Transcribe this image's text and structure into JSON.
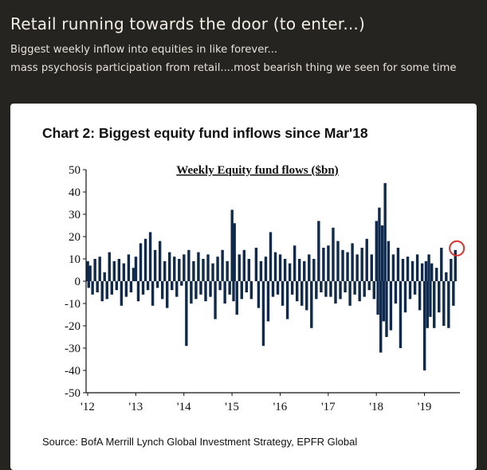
{
  "post": {
    "title": "Retail running towards the door (to enter...)",
    "line1": "Biggest weekly inflow into equities in like forever...",
    "line2": "mass psychosis participation from retail....most bearish thing we seen for some time"
  },
  "colors": {
    "page_background": "#262421",
    "card_background": "#ffffff",
    "bar_color": "#0f2a4f",
    "highlight_circle": "#e0302a"
  },
  "chart_data": {
    "type": "bar",
    "title": "Chart 2: Biggest equity fund inflows since Mar'18",
    "subtitle": "Weekly Equity fund flows ($bn)",
    "source": "Source: BofA Merrill Lynch Global Investment Strategy, EPFR Global",
    "ylim": [
      -50,
      50
    ],
    "y_ticks": [
      50,
      40,
      30,
      20,
      10,
      0,
      -10,
      -20,
      -30,
      -40,
      -50
    ],
    "x_ticks": [
      "'12",
      "'13",
      "'14",
      "'15",
      "'16",
      "'17",
      "'18",
      "'19"
    ],
    "xlim": [
      2012.0,
      2019.67
    ],
    "grid": false,
    "legend": "none",
    "annotation": "red circle around the latest weekly inflow",
    "series": [
      {
        "points": [
          [
            2012.0,
            9
          ],
          [
            2012.02,
            -3
          ],
          [
            2012.05,
            7
          ],
          [
            2012.1,
            -6
          ],
          [
            2012.15,
            10
          ],
          [
            2012.2,
            -5
          ],
          [
            2012.25,
            11
          ],
          [
            2012.3,
            -9
          ],
          [
            2012.35,
            4
          ],
          [
            2012.4,
            -8
          ],
          [
            2012.45,
            13
          ],
          [
            2012.5,
            -6
          ],
          [
            2012.55,
            9
          ],
          [
            2012.6,
            -4
          ],
          [
            2012.65,
            10
          ],
          [
            2012.7,
            -11
          ],
          [
            2012.75,
            8
          ],
          [
            2012.8,
            -7
          ],
          [
            2012.85,
            12
          ],
          [
            2012.9,
            -5
          ],
          [
            2012.95,
            6
          ],
          [
            2013.0,
            11
          ],
          [
            2013.05,
            -9
          ],
          [
            2013.1,
            17
          ],
          [
            2013.15,
            -6
          ],
          [
            2013.2,
            19
          ],
          [
            2013.25,
            -4
          ],
          [
            2013.3,
            22
          ],
          [
            2013.35,
            -11
          ],
          [
            2013.4,
            14
          ],
          [
            2013.45,
            -3
          ],
          [
            2013.5,
            18
          ],
          [
            2013.55,
            -8
          ],
          [
            2013.6,
            9
          ],
          [
            2013.65,
            -12
          ],
          [
            2013.7,
            13
          ],
          [
            2013.75,
            -4
          ],
          [
            2013.8,
            11
          ],
          [
            2013.85,
            -7
          ],
          [
            2013.9,
            10
          ],
          [
            2013.95,
            -2
          ],
          [
            2014.0,
            12
          ],
          [
            2014.05,
            -29
          ],
          [
            2014.1,
            14
          ],
          [
            2014.15,
            -10
          ],
          [
            2014.2,
            9
          ],
          [
            2014.25,
            -8
          ],
          [
            2014.3,
            13
          ],
          [
            2014.35,
            -6
          ],
          [
            2014.4,
            10
          ],
          [
            2014.45,
            -9
          ],
          [
            2014.5,
            12
          ],
          [
            2014.55,
            -7
          ],
          [
            2014.6,
            8
          ],
          [
            2014.65,
            -17
          ],
          [
            2014.7,
            11
          ],
          [
            2014.75,
            -4
          ],
          [
            2014.8,
            14
          ],
          [
            2014.85,
            -10
          ],
          [
            2014.9,
            9
          ],
          [
            2014.95,
            -6
          ],
          [
            2015.0,
            32
          ],
          [
            2015.03,
            -9
          ],
          [
            2015.05,
            26
          ],
          [
            2015.1,
            -15
          ],
          [
            2015.15,
            12
          ],
          [
            2015.2,
            -8
          ],
          [
            2015.25,
            14
          ],
          [
            2015.3,
            -5
          ],
          [
            2015.35,
            10
          ],
          [
            2015.4,
            -8
          ],
          [
            2015.5,
            15
          ],
          [
            2015.55,
            -12
          ],
          [
            2015.6,
            9
          ],
          [
            2015.65,
            -29
          ],
          [
            2015.7,
            11
          ],
          [
            2015.75,
            -18
          ],
          [
            2015.8,
            22
          ],
          [
            2015.85,
            -7
          ],
          [
            2015.9,
            13
          ],
          [
            2015.95,
            -6
          ],
          [
            2016.0,
            12
          ],
          [
            2016.05,
            -11
          ],
          [
            2016.1,
            10
          ],
          [
            2016.15,
            -17
          ],
          [
            2016.2,
            8
          ],
          [
            2016.25,
            -6
          ],
          [
            2016.3,
            16
          ],
          [
            2016.35,
            -9
          ],
          [
            2016.4,
            10
          ],
          [
            2016.45,
            -11
          ],
          [
            2016.5,
            9
          ],
          [
            2016.55,
            -13
          ],
          [
            2016.6,
            12
          ],
          [
            2016.65,
            -21
          ],
          [
            2016.7,
            10
          ],
          [
            2016.75,
            -8
          ],
          [
            2016.8,
            27
          ],
          [
            2016.85,
            -5
          ],
          [
            2016.9,
            15
          ],
          [
            2016.95,
            -7
          ],
          [
            2017.0,
            16
          ],
          [
            2017.05,
            -7
          ],
          [
            2017.1,
            24
          ],
          [
            2017.15,
            -10
          ],
          [
            2017.2,
            18
          ],
          [
            2017.25,
            -8
          ],
          [
            2017.3,
            14
          ],
          [
            2017.35,
            -5
          ],
          [
            2017.4,
            13
          ],
          [
            2017.45,
            -11
          ],
          [
            2017.5,
            17
          ],
          [
            2017.55,
            -6
          ],
          [
            2017.6,
            12
          ],
          [
            2017.65,
            -9
          ],
          [
            2017.7,
            15
          ],
          [
            2017.75,
            -7
          ],
          [
            2017.8,
            19
          ],
          [
            2017.85,
            -4
          ],
          [
            2017.9,
            12
          ],
          [
            2017.95,
            -8
          ],
          [
            2018.0,
            27
          ],
          [
            2018.03,
            -15
          ],
          [
            2018.06,
            33
          ],
          [
            2018.09,
            -32
          ],
          [
            2018.12,
            25
          ],
          [
            2018.15,
            -18
          ],
          [
            2018.18,
            44
          ],
          [
            2018.21,
            -25
          ],
          [
            2018.25,
            18
          ],
          [
            2018.3,
            -22
          ],
          [
            2018.35,
            12
          ],
          [
            2018.4,
            -10
          ],
          [
            2018.45,
            15
          ],
          [
            2018.5,
            -30
          ],
          [
            2018.55,
            10
          ],
          [
            2018.6,
            -14
          ],
          [
            2018.65,
            11
          ],
          [
            2018.7,
            -8
          ],
          [
            2018.75,
            9
          ],
          [
            2018.8,
            -6
          ],
          [
            2018.85,
            12
          ],
          [
            2018.9,
            -13
          ],
          [
            2018.95,
            8
          ],
          [
            2019.0,
            -40
          ],
          [
            2019.03,
            9
          ],
          [
            2019.06,
            -21
          ],
          [
            2019.09,
            12
          ],
          [
            2019.12,
            -16
          ],
          [
            2019.15,
            8
          ],
          [
            2019.2,
            -21
          ],
          [
            2019.25,
            6
          ],
          [
            2019.3,
            -14
          ],
          [
            2019.35,
            15
          ],
          [
            2019.4,
            -20
          ],
          [
            2019.45,
            4
          ],
          [
            2019.5,
            -21
          ],
          [
            2019.55,
            10
          ],
          [
            2019.6,
            -11
          ],
          [
            2019.64,
            14
          ]
        ]
      }
    ]
  }
}
